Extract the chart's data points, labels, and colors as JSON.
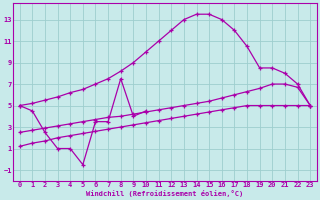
{
  "xlabel": "Windchill (Refroidissement éolien,°C)",
  "xlim": [
    -0.5,
    23.5
  ],
  "ylim": [
    -2,
    14.5
  ],
  "xticks": [
    0,
    1,
    2,
    3,
    4,
    5,
    6,
    7,
    8,
    9,
    10,
    11,
    12,
    13,
    14,
    15,
    16,
    17,
    18,
    19,
    20,
    21,
    22,
    23
  ],
  "yticks": [
    -1,
    1,
    3,
    5,
    7,
    9,
    11,
    13
  ],
  "bg_color": "#c8eaea",
  "line_color": "#aa00aa",
  "grid_color": "#9ecece",
  "line1_x": [
    0,
    1,
    2,
    3,
    4,
    5,
    6,
    7,
    8,
    9,
    10,
    11,
    12,
    13,
    14,
    15,
    16,
    17,
    18,
    19,
    20,
    21,
    22,
    23
  ],
  "line1_y": [
    5.0,
    5.2,
    5.5,
    5.8,
    6.2,
    6.5,
    7.0,
    7.5,
    8.2,
    9.0,
    10.0,
    11.0,
    12.0,
    13.0,
    13.5,
    13.5,
    13.0,
    12.0,
    10.5,
    8.5,
    8.5,
    8.0,
    7.0,
    5.0
  ],
  "line2_x": [
    0,
    1,
    2,
    3,
    4,
    5,
    6,
    7,
    8,
    9,
    10,
    11,
    12,
    13,
    14,
    15,
    16,
    17,
    18,
    19,
    20,
    21,
    22,
    23
  ],
  "line2_y": [
    2.5,
    2.7,
    2.9,
    3.1,
    3.3,
    3.5,
    3.7,
    3.9,
    4.0,
    4.2,
    4.4,
    4.6,
    4.8,
    5.0,
    5.2,
    5.4,
    5.7,
    6.0,
    6.3,
    6.6,
    7.0,
    7.0,
    6.7,
    5.0
  ],
  "line3_x": [
    0,
    1,
    2,
    3,
    4,
    5,
    6,
    7,
    8,
    9,
    10,
    11,
    12,
    13,
    14,
    15,
    16,
    17,
    18,
    19,
    20,
    21,
    22,
    23
  ],
  "line3_y": [
    1.2,
    1.5,
    1.7,
    2.0,
    2.2,
    2.4,
    2.6,
    2.8,
    3.0,
    3.2,
    3.4,
    3.6,
    3.8,
    4.0,
    4.2,
    4.4,
    4.6,
    4.8,
    5.0,
    5.0,
    5.0,
    5.0,
    5.0,
    5.0
  ],
  "line4_x": [
    0,
    1,
    2,
    3,
    4,
    5,
    6,
    7,
    8,
    9,
    10
  ],
  "line4_y": [
    5.0,
    4.5,
    2.5,
    1.0,
    1.0,
    -0.5,
    3.5,
    3.5,
    7.5,
    4.0,
    4.5
  ]
}
